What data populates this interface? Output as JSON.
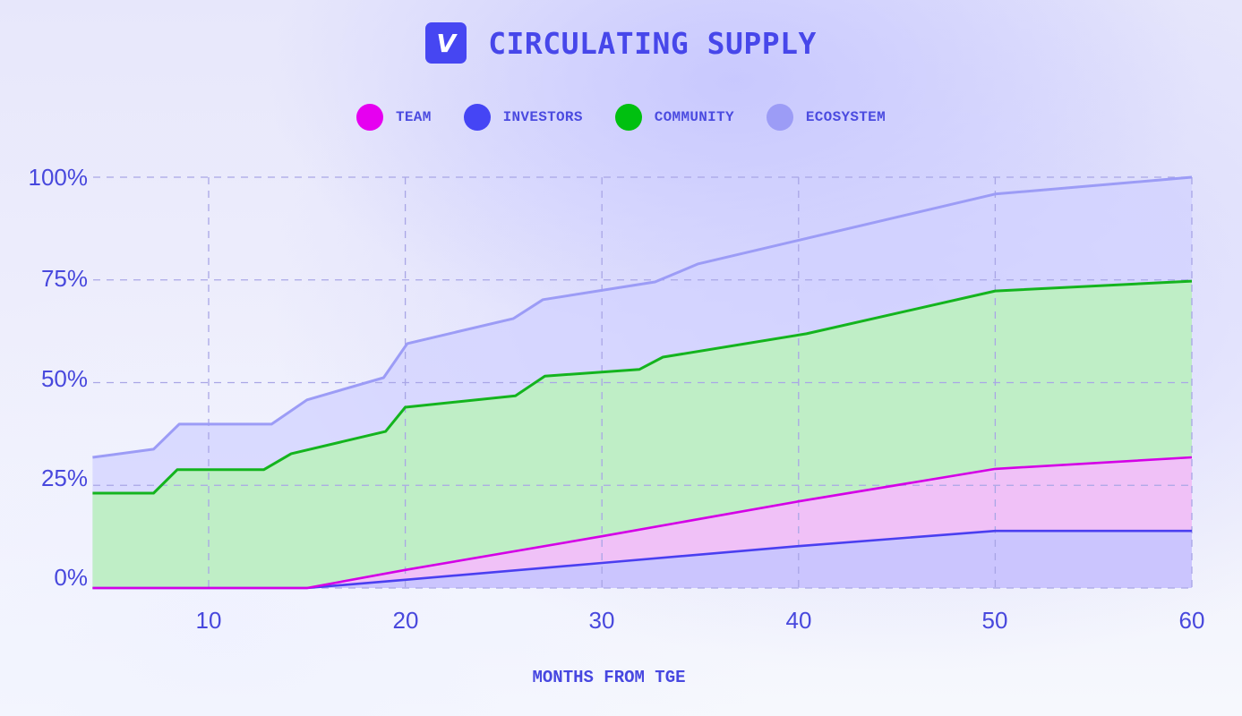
{
  "header": {
    "logo_letter": "V",
    "title": "CIRCULATING SUPPLY"
  },
  "colors": {
    "logo_bg": "#4646f2",
    "title": "#4747ea",
    "team": "#e600f0",
    "investors": "#4545f5",
    "community": "#00c010",
    "ecosystem": "#9c9cf6"
  },
  "legend": [
    {
      "label": "TEAM",
      "color": "#e600f0"
    },
    {
      "label": "INVESTORS",
      "color": "#4545f5"
    },
    {
      "label": "COMMUNITY",
      "color": "#00c010"
    },
    {
      "label": "ECOSYSTEM",
      "color": "#9c9cf6"
    }
  ],
  "axes": {
    "y_ticks": [
      "0%",
      "25%",
      "50%",
      "75%",
      "100%"
    ],
    "x_ticks": [
      "10",
      "20",
      "30",
      "40",
      "50",
      "60"
    ],
    "x_label": "MONTHS FROM TGE"
  },
  "chart_data": {
    "type": "area",
    "stacked": true,
    "title": "CIRCULATING SUPPLY",
    "xlabel": "MONTHS FROM TGE",
    "ylabel": "",
    "xlim": [
      4.1,
      60
    ],
    "ylim": [
      0,
      100
    ],
    "x_ticks": [
      10,
      20,
      30,
      40,
      50,
      60
    ],
    "y_ticks": [
      0,
      25,
      50,
      75,
      100
    ],
    "y_tick_format": "%",
    "grid": true,
    "legend_position": "top",
    "note": "values are cumulative (stacked) circulating supply % at each breakpoint",
    "series": [
      {
        "name": "INVESTORS",
        "color": "#4545f5",
        "points": [
          [
            4.1,
            0
          ],
          [
            15,
            0
          ],
          [
            20,
            2.0
          ],
          [
            30,
            6.1
          ],
          [
            40,
            10.2
          ],
          [
            50,
            13.9
          ],
          [
            60,
            13.9
          ]
        ]
      },
      {
        "name": "TEAM",
        "color": "#e600f0",
        "points": [
          [
            4.1,
            0
          ],
          [
            15,
            0
          ],
          [
            20,
            4.4
          ],
          [
            30,
            12.6
          ],
          [
            40,
            21.1
          ],
          [
            50,
            29.0
          ],
          [
            60,
            31.8
          ]
        ]
      },
      {
        "name": "COMMUNITY",
        "color": "#00c010",
        "points": [
          [
            4.1,
            23.1
          ],
          [
            7.2,
            23.1
          ],
          [
            8.4,
            28.8
          ],
          [
            12.8,
            28.8
          ],
          [
            14.2,
            32.7
          ],
          [
            19.0,
            38.1
          ],
          [
            20.0,
            44.0
          ],
          [
            25.6,
            46.8
          ],
          [
            27.1,
            51.6
          ],
          [
            31.9,
            53.2
          ],
          [
            33.1,
            56.2
          ],
          [
            40.4,
            61.9
          ],
          [
            50.0,
            72.3
          ],
          [
            60.0,
            74.7
          ]
        ]
      },
      {
        "name": "ECOSYSTEM",
        "color": "#9c9cf6",
        "points": [
          [
            4.1,
            31.8
          ],
          [
            7.2,
            33.8
          ],
          [
            8.5,
            39.9
          ],
          [
            13.2,
            39.9
          ],
          [
            15.0,
            45.8
          ],
          [
            18.9,
            51.2
          ],
          [
            20.1,
            59.5
          ],
          [
            25.5,
            65.6
          ],
          [
            27.0,
            70.2
          ],
          [
            32.7,
            74.5
          ],
          [
            34.9,
            78.9
          ],
          [
            50.0,
            95.9
          ],
          [
            60.0,
            100.0
          ]
        ]
      }
    ]
  }
}
